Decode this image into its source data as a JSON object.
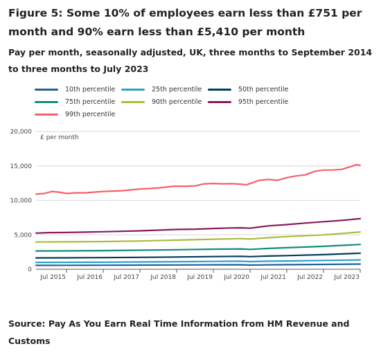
{
  "title": "Figure 5: Some 10% of employees earn less than £751 per month and 90% earn less than £5,410 per month",
  "subtitle": "Pay per month, seasonally adjusted, UK, three months to September 2014 to three months to July 2023",
  "source": "Source: Pay As You Earn Real Time Information from HM Revenue and Customs",
  "chart_data": {
    "type": "line",
    "ylabel": "£ per month",
    "ylim": [
      0,
      20000
    ],
    "yticks": [
      0,
      5000,
      10000,
      15000,
      20000
    ],
    "ytick_labels": [
      "0",
      "5,000",
      "10,000",
      "15,000",
      "20,000"
    ],
    "xlim": [
      2014.67,
      2023.5
    ],
    "xticks": [
      2015.5,
      2016.5,
      2017.5,
      2018.5,
      2019.5,
      2020.5,
      2021.5,
      2022.5,
      2023.5
    ],
    "xtick_labels": [
      "Jul 2015",
      "Jul 2016",
      "Jul 2017",
      "Jul 2018",
      "Jul 2019",
      "Jul 2020",
      "Jul 2021",
      "Jul 2022",
      "Jul 2023"
    ],
    "grid": "horizontal",
    "legend_position": "top",
    "series": [
      {
        "name": "10th percentile",
        "color": "#206095",
        "points": [
          [
            2014.67,
            560
          ],
          [
            2015.5,
            570
          ],
          [
            2016.5,
            580
          ],
          [
            2017.5,
            600
          ],
          [
            2018.5,
            620
          ],
          [
            2019.5,
            640
          ],
          [
            2020.25,
            650
          ],
          [
            2020.5,
            600
          ],
          [
            2021.0,
            640
          ],
          [
            2021.5,
            660
          ],
          [
            2022.5,
            700
          ],
          [
            2023.5,
            751
          ]
        ]
      },
      {
        "name": "25th percentile",
        "color": "#27a0cc",
        "points": [
          [
            2014.67,
            1000
          ],
          [
            2015.5,
            1010
          ],
          [
            2016.5,
            1030
          ],
          [
            2017.5,
            1060
          ],
          [
            2018.5,
            1100
          ],
          [
            2019.5,
            1140
          ],
          [
            2020.25,
            1170
          ],
          [
            2020.5,
            1110
          ],
          [
            2021.0,
            1170
          ],
          [
            2021.5,
            1200
          ],
          [
            2022.5,
            1280
          ],
          [
            2023.5,
            1360
          ]
        ]
      },
      {
        "name": "50th percentile",
        "color": "#003c57",
        "points": [
          [
            2014.67,
            1650
          ],
          [
            2015.5,
            1660
          ],
          [
            2016.5,
            1690
          ],
          [
            2017.5,
            1730
          ],
          [
            2018.5,
            1780
          ],
          [
            2019.5,
            1840
          ],
          [
            2020.25,
            1880
          ],
          [
            2020.5,
            1830
          ],
          [
            2021.0,
            1920
          ],
          [
            2021.5,
            1980
          ],
          [
            2022.5,
            2120
          ],
          [
            2023.5,
            2330
          ]
        ]
      },
      {
        "name": "75th percentile",
        "color": "#118c7b",
        "points": [
          [
            2014.67,
            2650
          ],
          [
            2015.5,
            2660
          ],
          [
            2016.5,
            2700
          ],
          [
            2017.5,
            2760
          ],
          [
            2018.5,
            2830
          ],
          [
            2019.5,
            2910
          ],
          [
            2020.25,
            2950
          ],
          [
            2020.5,
            2880
          ],
          [
            2021.0,
            3030
          ],
          [
            2021.5,
            3130
          ],
          [
            2022.5,
            3330
          ],
          [
            2023.5,
            3600
          ]
        ]
      },
      {
        "name": "90th percentile",
        "color": "#a8bd3a",
        "points": [
          [
            2014.67,
            3950
          ],
          [
            2015.5,
            3980
          ],
          [
            2016.5,
            4020
          ],
          [
            2017.5,
            4100
          ],
          [
            2018.5,
            4230
          ],
          [
            2019.5,
            4360
          ],
          [
            2020.25,
            4450
          ],
          [
            2020.5,
            4380
          ],
          [
            2021.0,
            4580
          ],
          [
            2021.5,
            4740
          ],
          [
            2022.5,
            5000
          ],
          [
            2023.5,
            5410
          ]
        ]
      },
      {
        "name": "95th percentile",
        "color": "#871a5b",
        "points": [
          [
            2014.67,
            5250
          ],
          [
            2015.0,
            5320
          ],
          [
            2015.5,
            5340
          ],
          [
            2016.5,
            5450
          ],
          [
            2017.5,
            5580
          ],
          [
            2018.0,
            5680
          ],
          [
            2018.5,
            5780
          ],
          [
            2019.0,
            5820
          ],
          [
            2019.5,
            5920
          ],
          [
            2020.0,
            6000
          ],
          [
            2020.25,
            6020
          ],
          [
            2020.5,
            5960
          ],
          [
            2021.0,
            6300
          ],
          [
            2021.5,
            6480
          ],
          [
            2022.0,
            6700
          ],
          [
            2022.5,
            6900
          ],
          [
            2023.0,
            7100
          ],
          [
            2023.5,
            7350
          ]
        ]
      },
      {
        "name": "99th percentile",
        "color": "#f66068",
        "points": [
          [
            2014.67,
            10900
          ],
          [
            2014.9,
            11000
          ],
          [
            2015.1,
            11300
          ],
          [
            2015.3,
            11200
          ],
          [
            2015.5,
            11000
          ],
          [
            2015.75,
            11100
          ],
          [
            2016.0,
            11100
          ],
          [
            2016.5,
            11300
          ],
          [
            2017.0,
            11400
          ],
          [
            2017.5,
            11650
          ],
          [
            2018.0,
            11800
          ],
          [
            2018.4,
            12050
          ],
          [
            2018.75,
            12050
          ],
          [
            2019.0,
            12100
          ],
          [
            2019.25,
            12400
          ],
          [
            2019.5,
            12450
          ],
          [
            2019.75,
            12400
          ],
          [
            2020.0,
            12420
          ],
          [
            2020.25,
            12350
          ],
          [
            2020.4,
            12250
          ],
          [
            2020.75,
            12900
          ],
          [
            2021.0,
            13050
          ],
          [
            2021.25,
            12900
          ],
          [
            2021.5,
            13300
          ],
          [
            2021.75,
            13550
          ],
          [
            2022.0,
            13700
          ],
          [
            2022.25,
            14200
          ],
          [
            2022.5,
            14400
          ],
          [
            2022.75,
            14400
          ],
          [
            2023.0,
            14500
          ],
          [
            2023.25,
            14900
          ],
          [
            2023.4,
            15200
          ],
          [
            2023.5,
            15100
          ]
        ]
      }
    ]
  }
}
